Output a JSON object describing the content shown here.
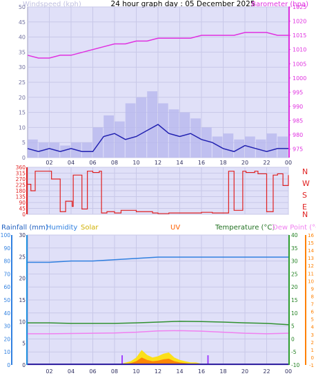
{
  "header": {
    "title": "24 hour graph day : 05 December 2025",
    "left_label": "Windspeed (kph)",
    "right_label": "Barometer (hpa)"
  },
  "legend": {
    "rainfall": "Rainfall (mm)",
    "humidity": "Humidity",
    "solar": "Solar",
    "uv": "UV",
    "temperature": "Temperature (°C)",
    "dewpoint": "Dew Point (°C)"
  },
  "colors": {
    "plot_bg": "#e0e0f8",
    "wind_line": "#2020b0",
    "gust_fill": "#b8b8ee",
    "baro": "#e030e0",
    "direction": "#e02020",
    "humidity": "#3080e0",
    "temperature": "#309030",
    "dewpoint": "#f080f0",
    "solar": "#ffe000",
    "solar_high": "#ff6000",
    "uv": "#ff4000",
    "rain_axis": "#2090e0",
    "temp_axis": "#30a030",
    "dew_axis": "#ff8000",
    "day_marker": "#a040ff"
  },
  "chart_data": [
    {
      "type": "line",
      "name": "wind-barometer",
      "x_ticks": [
        "02",
        "04",
        "06",
        "08",
        "10",
        "12",
        "14",
        "16",
        "18",
        "20",
        "22",
        "00"
      ],
      "y_left_ticks": [
        "0",
        "5",
        "10",
        "15",
        "20",
        "25",
        "30",
        "35",
        "40",
        "45",
        "50"
      ],
      "y_left_lim": [
        0,
        50
      ],
      "y_right_ticks": [
        "975",
        "980",
        "985",
        "990",
        "995",
        "1000",
        "1005",
        "1010",
        "1015",
        "1020",
        "1025"
      ],
      "y_right_lim": [
        972,
        1025
      ],
      "hours": [
        0,
        1,
        2,
        3,
        4,
        5,
        6,
        7,
        8,
        9,
        10,
        11,
        12,
        13,
        14,
        15,
        16,
        17,
        18,
        19,
        20,
        21,
        22,
        23,
        24
      ],
      "windspeed": [
        3,
        2,
        3,
        2,
        3,
        2,
        2,
        7,
        8,
        6,
        7,
        9,
        11,
        8,
        7,
        8,
        6,
        5,
        3,
        2,
        4,
        3,
        2,
        3,
        3
      ],
      "gust": [
        6,
        5,
        5,
        4,
        5,
        5,
        10,
        14,
        12,
        18,
        20,
        22,
        18,
        16,
        15,
        13,
        10,
        7,
        8,
        6,
        7,
        6,
        8,
        7,
        6
      ],
      "barometer": [
        1008,
        1007,
        1007,
        1008,
        1008,
        1009,
        1010,
        1011,
        1012,
        1012,
        1013,
        1013,
        1014,
        1014,
        1014,
        1014,
        1015,
        1015,
        1015,
        1015,
        1016,
        1016,
        1016,
        1015,
        1015
      ]
    },
    {
      "type": "line",
      "name": "wind-direction",
      "y_ticks": [
        "360",
        "315",
        "270",
        "225",
        "180",
        "135",
        "90",
        "45",
        "0"
      ],
      "y_lim": [
        0,
        360
      ],
      "compass": [
        "N",
        "W",
        "S",
        "E",
        "N"
      ],
      "hours": [
        0,
        0.3,
        0.7,
        1.5,
        2.2,
        2.9,
        3.0,
        3.4,
        3.5,
        4.1,
        4.2,
        4.8,
        5.0,
        5.5,
        6.0,
        6.6,
        6.8,
        7.3,
        8.0,
        8.6,
        10.0,
        11.5,
        12.0,
        13.0,
        14.0,
        15.0,
        16.0,
        17.0,
        18.5,
        19.0,
        19.8,
        20.1,
        20.9,
        21.2,
        22.0,
        22.6,
        23.0,
        23.5,
        24.0
      ],
      "direction": [
        230,
        180,
        330,
        330,
        270,
        270,
        20,
        20,
        100,
        60,
        300,
        300,
        40,
        330,
        320,
        330,
        10,
        20,
        10,
        30,
        20,
        10,
        5,
        10,
        10,
        10,
        15,
        10,
        330,
        30,
        330,
        320,
        330,
        310,
        20,
        300,
        310,
        220,
        300
      ]
    },
    {
      "type": "line",
      "name": "rain-humidity-temperature",
      "y_rain_ticks": [
        "0",
        "5",
        "10",
        "15",
        "20",
        "25",
        "30"
      ],
      "y_rain_lim": [
        0,
        30
      ],
      "y_hum_ticks": [
        "0",
        "10",
        "20",
        "30",
        "40",
        "50",
        "60",
        "70",
        "80",
        "90",
        "100"
      ],
      "y_hum_lim": [
        0,
        100
      ],
      "y_temp_ticks": [
        "-10",
        "-5",
        "0",
        "5",
        "10",
        "15",
        "20",
        "25",
        "30",
        "35",
        "40"
      ],
      "y_temp_lim": [
        -10,
        40
      ],
      "y_dew_ticks": [
        "-1",
        "0",
        "1",
        "2",
        "3",
        "4",
        "5",
        "6",
        "7",
        "8",
        "9",
        "10",
        "11",
        "12",
        "13",
        "14",
        "15",
        "16"
      ],
      "y_dew_lim": [
        -1,
        16
      ],
      "hours": [
        0,
        2,
        4,
        6,
        8,
        10,
        12,
        14,
        16,
        18,
        20,
        22,
        24
      ],
      "humidity": [
        79,
        79,
        80,
        80,
        81,
        82,
        83,
        83,
        83,
        83,
        83,
        83,
        83
      ],
      "temperature": [
        6.2,
        6.2,
        6.0,
        6.0,
        6.0,
        6.2,
        6.5,
        6.8,
        6.7,
        6.5,
        6.2,
        6.0,
        5.5
      ],
      "dewpoint": [
        2.0,
        2.0,
        2.1,
        2.2,
        2.3,
        2.6,
        3.1,
        3.2,
        3.0,
        2.6,
        2.2,
        2.0,
        2.2
      ],
      "rainfall": [
        0,
        0,
        0,
        0,
        0,
        0,
        0,
        0,
        0,
        0,
        0,
        0,
        0
      ],
      "solar_hours": [
        8.6,
        9.5,
        10.0,
        10.5,
        11.0,
        11.5,
        12.0,
        12.5,
        13.0,
        13.5,
        14.0,
        14.5,
        15.0,
        15.5,
        16.0,
        16.5
      ],
      "solar": [
        1,
        3,
        6,
        12,
        8,
        6,
        7,
        9,
        10,
        6,
        4,
        3,
        2,
        2,
        1,
        0
      ],
      "uv_hours": [
        8.7,
        16.6
      ],
      "uv": [
        0,
        0
      ]
    }
  ]
}
